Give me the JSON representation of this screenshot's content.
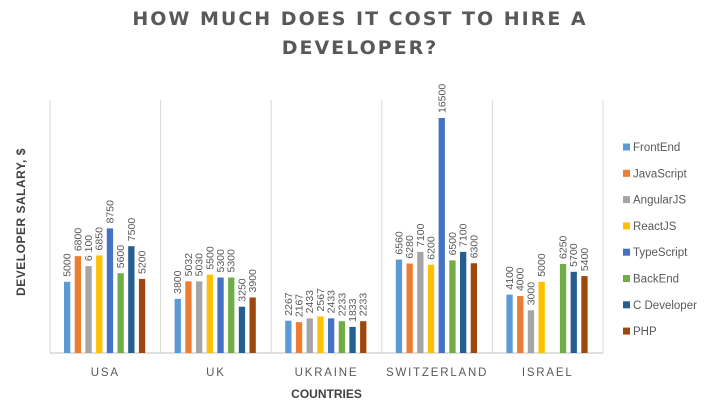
{
  "chart_data": {
    "type": "bar",
    "title_line1": "HOW MUCH DOES IT COST TO HIRE A",
    "title_line2": "DEVELOPER?",
    "xlabel": "COUNTRIES",
    "ylabel": "DEVELOPER SALARY, $",
    "ylim": [
      0,
      17500
    ],
    "grid": false,
    "legend_position": "right",
    "categories": [
      "USA",
      "UK",
      "UKRAINE",
      "SWITZERLAND",
      "ISRAEL"
    ],
    "series": [
      {
        "name": "FrontEnd",
        "color": "#5B9BD5",
        "values": [
          5000,
          3800,
          2267,
          6560,
          4100
        ],
        "labels": [
          "5000",
          "3800",
          "2267",
          "6560",
          "4100"
        ]
      },
      {
        "name": "JavaScript",
        "color": "#ED7D31",
        "values": [
          6800,
          5032,
          2167,
          6280,
          4000
        ],
        "labels": [
          "6800",
          "5032",
          "2167",
          "6280",
          "4000"
        ]
      },
      {
        "name": "AngularJS",
        "color": "#A5A5A5",
        "values": [
          6100,
          5030,
          2433,
          7100,
          3000
        ],
        "labels": [
          "6 100",
          "5030",
          "2433",
          "7100",
          "3000"
        ]
      },
      {
        "name": "ReactJS",
        "color": "#FFC000",
        "values": [
          6850,
          5500,
          2567,
          6200,
          5000
        ],
        "labels": [
          "6850",
          "5500",
          "2567",
          "6200",
          "5000"
        ]
      },
      {
        "name": "TypeScript",
        "color": "#4472C4",
        "values": [
          8750,
          5300,
          2433,
          16500,
          null
        ],
        "labels": [
          "8750",
          "5300",
          "2433",
          "16500",
          ""
        ]
      },
      {
        "name": "BackEnd",
        "color": "#70AD47",
        "values": [
          5600,
          5300,
          2233,
          6500,
          6250
        ],
        "labels": [
          "5600",
          "5300",
          "2233",
          "6500",
          "6250"
        ]
      },
      {
        "name": "C Developer",
        "color": "#255E91",
        "values": [
          7500,
          3250,
          1833,
          7100,
          5700
        ],
        "labels": [
          "7500",
          "3250",
          "1833",
          "7100",
          "5700"
        ]
      },
      {
        "name": "PHP",
        "color": "#9E480E",
        "values": [
          5200,
          3900,
          2233,
          6300,
          5400
        ],
        "labels": [
          "5200",
          "3900",
          "2233",
          "6300",
          "5400"
        ]
      }
    ]
  }
}
